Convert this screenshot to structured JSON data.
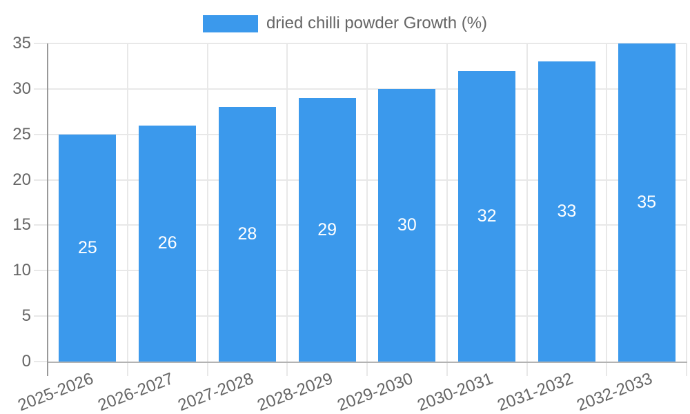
{
  "chart_data": {
    "type": "bar",
    "title": "",
    "categories": [
      "2025-2026",
      "2026-2027",
      "2027-2028",
      "2028-2029",
      "2029-2030",
      "2030-2031",
      "2031-2032",
      "2032-2033"
    ],
    "series": [
      {
        "name": "dried chilli powder Growth (%)",
        "values": [
          25,
          26,
          28,
          29,
          30,
          32,
          33,
          35
        ]
      }
    ],
    "value_labels": [
      25,
      26,
      28,
      29,
      30,
      32,
      33,
      35
    ],
    "xlabel": "",
    "ylabel": "",
    "ylim": [
      0,
      35
    ],
    "yticks": [
      0,
      5,
      10,
      15,
      20,
      25,
      30,
      35
    ],
    "grid": true,
    "legend_position": "top-center",
    "bar_color": "#3B99EC",
    "value_label_color": "#FFFFFF",
    "axis_text_color": "#666666",
    "grid_color": "#E8E8E8",
    "x_axis_line_color": "#B3B3B3",
    "y_axis_line_color": "#999999",
    "background_color": "#FFFFFF"
  }
}
